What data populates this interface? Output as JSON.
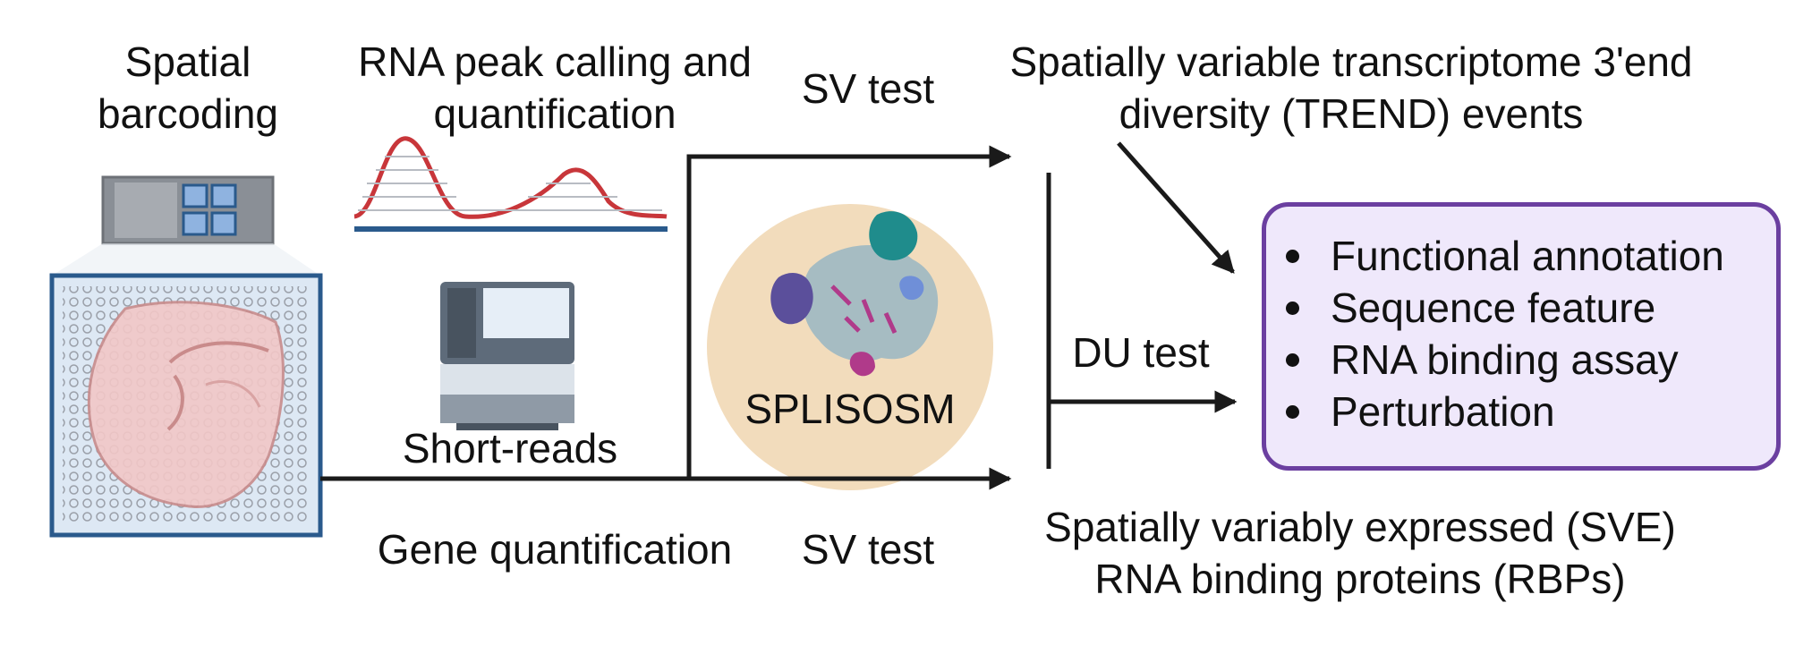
{
  "labels": {
    "spatial_barcoding": [
      "Spatial",
      "barcoding"
    ],
    "peak_calling": [
      "RNA peak calling and",
      "quantification"
    ],
    "short_reads": "Short-reads",
    "gene_quantification": "Gene quantification",
    "sv_test_top": "SV test",
    "sv_test_bottom": "SV test",
    "du_test": "DU test",
    "splisosm": "SPLISOSM",
    "trend": [
      "Spatially variable transcriptome 3'end",
      "diversity (TREND) events"
    ],
    "sve": [
      "Spatially variably expressed (SVE)",
      "RNA binding proteins (RBPs)"
    ]
  },
  "panel": {
    "items": [
      "Functional annotation",
      "Sequence feature",
      "RNA binding assay",
      "Perturbation"
    ]
  },
  "colors": {
    "arrow": "#1a1a1a",
    "peak_curve": "#c8363a",
    "baseline": "#2a5a8c",
    "panel_border": "#6b3fa0",
    "panel_fill": "#efe8fb",
    "circle_fill": "#f2dcbc",
    "tissue_frame": "#2a5a8c"
  },
  "icons": [
    "barcoding-slide-icon",
    "brain-tissue-array-icon",
    "sequencer-icon",
    "protein-structure-icon"
  ]
}
